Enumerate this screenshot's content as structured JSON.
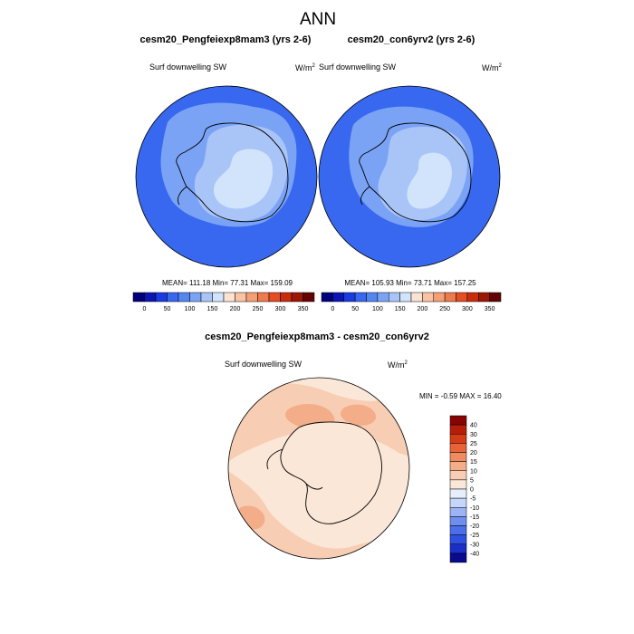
{
  "figure": {
    "title": "ANN"
  },
  "chart_data": [
    {
      "type": "heatmap",
      "projection": "south-polar-stereographic",
      "title": "cesm20_Pengfeiexp8mam3 (yrs 2-6)",
      "variable_label": "Surf downwelling SW",
      "unit_label": "W/m",
      "unit_exponent": "2",
      "stats": {
        "mean": "111.18",
        "min": "77.31",
        "max": "159.09"
      },
      "stats_label": "MEAN= 111.18  Min=  77.31  Max= 159.09",
      "colorbar": {
        "orientation": "horizontal",
        "levels": [
          0,
          25,
          50,
          75,
          100,
          125,
          150,
          175,
          200,
          225,
          250,
          275,
          300,
          325,
          350
        ],
        "tick_labels": [
          "0",
          "50",
          "100",
          "150",
          "200",
          "250",
          "300",
          "350"
        ],
        "colors": [
          "#00007a",
          "#0a15b4",
          "#1a3be0",
          "#3768ef",
          "#5486f2",
          "#7ba3f5",
          "#a9c5f8",
          "#d2e4fb",
          "#fbe3d3",
          "#f9c3a4",
          "#f59f77",
          "#ef7a4c",
          "#e44e22",
          "#c92c0a",
          "#9c1705",
          "#640303"
        ]
      },
      "regions": {
        "ocean_fill": "#3768ef",
        "ice_shelf_fill": "#7ba3f5",
        "interior_fill": "#a9c5f8",
        "high_plateau_fill": "#d2e4fb"
      }
    },
    {
      "type": "heatmap",
      "projection": "south-polar-stereographic",
      "title": "cesm20_con6yrv2 (yrs 2-6)",
      "variable_label": "Surf downwelling SW",
      "unit_label": "W/m",
      "unit_exponent": "2",
      "stats": {
        "mean": "105.93",
        "min": "73.71",
        "max": "157.25"
      },
      "stats_label": "MEAN= 105.93  Min=  73.71  Max= 157.25",
      "colorbar": {
        "orientation": "horizontal",
        "levels": [
          0,
          25,
          50,
          75,
          100,
          125,
          150,
          175,
          200,
          225,
          250,
          275,
          300,
          325,
          350
        ],
        "tick_labels": [
          "0",
          "50",
          "100",
          "150",
          "200",
          "250",
          "300",
          "350"
        ],
        "colors": [
          "#00007a",
          "#0a15b4",
          "#1a3be0",
          "#3768ef",
          "#5486f2",
          "#7ba3f5",
          "#a9c5f8",
          "#d2e4fb",
          "#fbe3d3",
          "#f9c3a4",
          "#f59f77",
          "#ef7a4c",
          "#e44e22",
          "#c92c0a",
          "#9c1705",
          "#640303"
        ]
      },
      "regions": {
        "ocean_fill": "#3768ef",
        "ice_shelf_fill": "#7ba3f5",
        "interior_fill": "#a9c5f8",
        "high_plateau_fill": "#d2e4fb"
      }
    },
    {
      "type": "heatmap",
      "projection": "south-polar-stereographic",
      "title": "cesm20_Pengfeiexp8mam3 - cesm20_con6yrv2",
      "variable_label": "Surf downwelling SW",
      "unit_label": "W/m",
      "unit_exponent": "2",
      "stats": {
        "min": "-0.59",
        "max": "16.40"
      },
      "stats_label": "MIN =  -0.59 MAX =  16.40",
      "colorbar": {
        "orientation": "vertical",
        "levels": [
          -40,
          -30,
          -25,
          -20,
          -15,
          -10,
          -5,
          0,
          5,
          10,
          15,
          20,
          25,
          30,
          40
        ],
        "tick_labels": [
          "40",
          "30",
          "25",
          "20",
          "15",
          "10",
          "5",
          "0",
          "-5",
          "-10",
          "-15",
          "-20",
          "-25",
          "-30",
          "-40"
        ],
        "colors": [
          "#0a0a8c",
          "#1a2fc8",
          "#2f4fe0",
          "#4a6fe8",
          "#6f8ff0",
          "#9cb3f4",
          "#c6d6f8",
          "#e6eefb",
          "#fbe7d8",
          "#f7cdb3",
          "#f3ad88",
          "#ee8c60",
          "#e8623a",
          "#d63b17",
          "#b51d08",
          "#850404"
        ]
      },
      "regions": {
        "background_fill": "#fbe7d8",
        "moderate_fill": "#f7cdb3",
        "strong_fill": "#f3ad88"
      }
    }
  ]
}
